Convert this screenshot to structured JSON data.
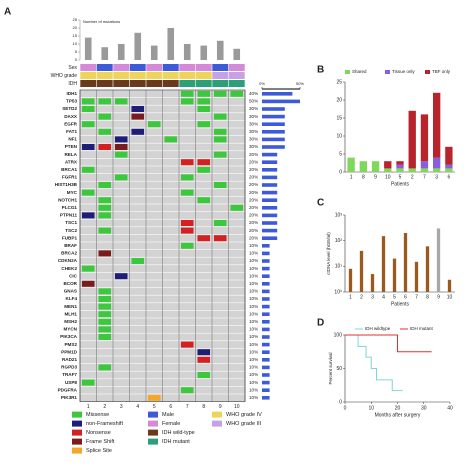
{
  "chart_data": [
    {
      "type": "oncoprint",
      "label": "A",
      "bar_title": "Number of mutations",
      "categories": [
        "1",
        "2",
        "3",
        "4",
        "5",
        "6",
        "7",
        "8",
        "9",
        "10"
      ],
      "counts": [
        14,
        8,
        10,
        17,
        9,
        20,
        10,
        9,
        12,
        7
      ],
      "bar_color": "#9a9a9a",
      "ylim": [
        0,
        25
      ],
      "yticks": [
        0,
        5,
        10,
        15,
        20,
        25
      ],
      "legend": [
        {
          "name": "Missense",
          "color": "#3cc83c"
        },
        {
          "name": "non-Frameshift",
          "color": "#1e1e78"
        },
        {
          "name": "Nonsense",
          "color": "#d42020"
        },
        {
          "name": "Frame Shift",
          "color": "#7a1c1c"
        },
        {
          "name": "Splice Site",
          "color": "#f4a52a"
        },
        {
          "name": "Male",
          "color": "#3d5bd8"
        },
        {
          "name": "Female",
          "color": "#d58ad8"
        },
        {
          "name": "IDH wild-type",
          "color": "#6b3a1e"
        },
        {
          "name": "IDH mutant",
          "color": "#2a9f7a"
        },
        {
          "name": "WHO grade IV",
          "color": "#efd45a"
        },
        {
          "name": "WHO grade III",
          "color": "#c7a2e2"
        }
      ],
      "tracks": [
        {
          "name": "Sex",
          "values": [
            6,
            5,
            6,
            5,
            6,
            5,
            6,
            6,
            5,
            6
          ]
        },
        {
          "name": "WHO grade",
          "values": [
            9,
            9,
            9,
            9,
            9,
            9,
            9,
            9,
            10,
            10
          ]
        },
        {
          "name": "IDH",
          "values": [
            7,
            7,
            7,
            7,
            7,
            7,
            8,
            8,
            8,
            8
          ]
        }
      ],
      "genes": [
        "IDH1",
        "TP53",
        "SETD2",
        "DAXX",
        "EGFR",
        "FAT1",
        "NF1",
        "PTEN",
        "RELA",
        "ATRX",
        "BRCA1",
        "FGFR1",
        "HIST1H3B",
        "MYC",
        "NOTCH1",
        "PLCG1",
        "PTPN11",
        "TSC1",
        "TSC2",
        "FUBP1",
        "BRAF",
        "BRCA2",
        "CDKN2A",
        "CHEK2",
        "CIC",
        "BCOR",
        "GNAS",
        "KLF4",
        "MEN1",
        "MLH1",
        "MSH2",
        "MYCN",
        "PIK3CA",
        "PMS2",
        "PPM1D",
        "RAD21",
        "RGPD3",
        "TRAF7",
        "USP8",
        "PDGFRA",
        "PIK3R1"
      ],
      "matrix": [
        [
          null,
          null,
          null,
          null,
          null,
          null,
          0,
          0,
          0,
          0
        ],
        [
          0,
          0,
          0,
          null,
          null,
          null,
          0,
          0,
          null,
          null
        ],
        [
          0,
          null,
          null,
          1,
          null,
          null,
          null,
          0,
          null,
          null
        ],
        [
          null,
          0,
          null,
          3,
          null,
          null,
          null,
          null,
          0,
          null
        ],
        [
          0,
          null,
          null,
          null,
          0,
          null,
          null,
          0,
          null,
          null
        ],
        [
          null,
          0,
          null,
          1,
          null,
          null,
          null,
          null,
          0,
          null
        ],
        [
          null,
          null,
          1,
          null,
          null,
          0,
          null,
          null,
          0,
          null
        ],
        [
          1,
          2,
          3,
          null,
          null,
          null,
          null,
          null,
          null,
          null
        ],
        [
          null,
          null,
          0,
          null,
          null,
          null,
          null,
          null,
          0,
          null
        ],
        [
          null,
          null,
          null,
          null,
          null,
          null,
          2,
          2,
          null,
          null
        ],
        [
          0,
          null,
          null,
          null,
          null,
          null,
          null,
          0,
          null,
          null
        ],
        [
          null,
          null,
          0,
          null,
          null,
          null,
          0,
          null,
          null,
          null
        ],
        [
          null,
          0,
          null,
          null,
          null,
          null,
          null,
          null,
          0,
          null
        ],
        [
          0,
          null,
          null,
          null,
          null,
          null,
          0,
          null,
          null,
          null
        ],
        [
          null,
          0,
          null,
          null,
          null,
          null,
          null,
          0,
          null,
          null
        ],
        [
          null,
          0,
          null,
          null,
          null,
          null,
          null,
          null,
          null,
          0
        ],
        [
          1,
          0,
          null,
          null,
          null,
          null,
          null,
          null,
          null,
          null
        ],
        [
          null,
          null,
          null,
          null,
          null,
          null,
          2,
          null,
          0,
          null
        ],
        [
          null,
          0,
          null,
          null,
          null,
          null,
          2,
          null,
          null,
          null
        ],
        [
          null,
          null,
          null,
          null,
          null,
          null,
          null,
          2,
          2,
          null
        ],
        [
          null,
          null,
          null,
          null,
          null,
          null,
          0,
          null,
          null,
          null
        ],
        [
          null,
          3,
          null,
          null,
          null,
          null,
          null,
          null,
          null,
          null
        ],
        [
          null,
          null,
          null,
          0,
          null,
          null,
          null,
          null,
          null,
          null
        ],
        [
          0,
          null,
          null,
          null,
          null,
          null,
          null,
          null,
          null,
          null
        ],
        [
          null,
          null,
          1,
          null,
          null,
          null,
          null,
          null,
          null,
          null
        ],
        [
          3,
          null,
          null,
          null,
          null,
          null,
          null,
          null,
          null,
          null
        ],
        [
          null,
          0,
          null,
          null,
          null,
          null,
          null,
          null,
          null,
          null
        ],
        [
          null,
          0,
          null,
          null,
          null,
          null,
          null,
          null,
          null,
          null
        ],
        [
          null,
          0,
          null,
          null,
          null,
          null,
          null,
          null,
          null,
          null
        ],
        [
          null,
          0,
          null,
          null,
          null,
          null,
          null,
          null,
          null,
          null
        ],
        [
          null,
          0,
          null,
          null,
          null,
          null,
          null,
          null,
          null,
          null
        ],
        [
          null,
          0,
          null,
          null,
          null,
          null,
          null,
          null,
          null,
          null
        ],
        [
          null,
          0,
          null,
          null,
          null,
          null,
          null,
          null,
          null,
          null
        ],
        [
          null,
          null,
          null,
          null,
          null,
          null,
          2,
          null,
          null,
          null
        ],
        [
          null,
          null,
          null,
          null,
          null,
          null,
          null,
          1,
          null,
          null
        ],
        [
          null,
          null,
          null,
          null,
          null,
          null,
          null,
          2,
          null,
          null
        ],
        [
          null,
          0,
          null,
          null,
          null,
          null,
          null,
          null,
          null,
          null
        ],
        [
          null,
          null,
          null,
          null,
          null,
          null,
          null,
          0,
          null,
          null
        ],
        [
          0,
          null,
          null,
          null,
          null,
          null,
          null,
          null,
          null,
          null
        ],
        [
          null,
          null,
          null,
          null,
          null,
          null,
          0,
          null,
          null,
          null
        ],
        [
          null,
          null,
          null,
          null,
          4,
          null,
          null,
          null,
          null,
          null
        ]
      ],
      "frequency": {
        "color": "#3d5bd8",
        "values": [
          40,
          50,
          30,
          30,
          30,
          30,
          30,
          30,
          20,
          20,
          20,
          20,
          20,
          20,
          20,
          20,
          20,
          20,
          20,
          20,
          10,
          10,
          10,
          10,
          10,
          10,
          10,
          10,
          10,
          10,
          10,
          10,
          10,
          10,
          10,
          10,
          10,
          10,
          10,
          10,
          10
        ],
        "value_labels": [
          "40%",
          "50%",
          "30%",
          "30%",
          "30%",
          "30%",
          "30%",
          "30%",
          "20%",
          "20%",
          "20%",
          "20%",
          "20%",
          "20%",
          "20%",
          "20%",
          "20%",
          "20%",
          "20%",
          "20%",
          "10%",
          "10%",
          "10%",
          "10%",
          "10%",
          "10%",
          "10%",
          "10%",
          "10%",
          "10%",
          "10%",
          "10%",
          "10%",
          "10%",
          "10%",
          "10%",
          "10%",
          "10%",
          "10%",
          "10%",
          "10%"
        ],
        "xlim": [
          0,
          50
        ],
        "xticks": [
          {
            "value": 0,
            "label": "0%"
          },
          {
            "value": 50,
            "label": "50%"
          }
        ]
      }
    },
    {
      "type": "bar",
      "label": "B",
      "stacked": true,
      "xlabel": "Patients",
      "categories": [
        "1",
        "8",
        "9",
        "10",
        "5",
        "2",
        "7",
        "3",
        "6"
      ],
      "series": [
        {
          "name": "Shared",
          "color": "#7fd85a",
          "values": [
            4,
            3,
            3,
            1,
            1,
            1,
            1,
            1,
            1
          ]
        },
        {
          "name": "Tissue only",
          "color": "#8a5ce0",
          "values": [
            0,
            0,
            0,
            0,
            1,
            0,
            2,
            3,
            1
          ]
        },
        {
          "name": "TBF only",
          "color": "#b8242c",
          "values": [
            0,
            0,
            0,
            2,
            1,
            16,
            13,
            18,
            5
          ]
        }
      ],
      "ylim": [
        0,
        25
      ],
      "yticks": [
        0,
        5,
        10,
        15,
        20,
        25
      ]
    },
    {
      "type": "bar",
      "label": "C",
      "log": true,
      "xlabel": "Patients",
      "ylabel": "ctDNA level (hGE/ml)",
      "categories": [
        "1",
        "2",
        "3",
        "4",
        "5",
        "6",
        "7",
        "8",
        "9",
        "10"
      ],
      "values": [
        8,
        40,
        5,
        150,
        20,
        200,
        15,
        60,
        300,
        3
      ],
      "colors": [
        "#9a5a1e",
        "#9a5a1e",
        "#9a5a1e",
        "#9a5a1e",
        "#9a5a1e",
        "#9a5a1e",
        "#9a5a1e",
        "#9a5a1e",
        "#a8a8a8",
        "#9a5a1e"
      ],
      "ylim": [
        1,
        1000
      ],
      "yticks": [
        {
          "value": 1,
          "label": "10⁰"
        },
        {
          "value": 10,
          "label": "10¹"
        },
        {
          "value": 100,
          "label": "10²"
        },
        {
          "value": 1000,
          "label": "10³"
        }
      ]
    },
    {
      "type": "line",
      "label": "D",
      "xlabel": "Months after surgery",
      "ylabel": "Percent survival",
      "series": [
        {
          "name": "IDH wildtype",
          "color": "#7fd6d6",
          "x": [
            0,
            5,
            5,
            8,
            8,
            10,
            10,
            12,
            12,
            18,
            18,
            22
          ],
          "values": [
            100,
            100,
            83,
            83,
            67,
            67,
            50,
            50,
            33,
            33,
            17,
            17
          ]
        },
        {
          "name": "IDH mutant",
          "color": "#e03030",
          "x": [
            0,
            20,
            20,
            33
          ],
          "values": [
            100,
            100,
            75,
            75
          ]
        }
      ],
      "xlim": [
        0,
        40
      ],
      "xticks": [
        0,
        10,
        20,
        30,
        40
      ],
      "ylim": [
        0,
        100
      ],
      "yticks": [
        0,
        50,
        100
      ]
    }
  ]
}
